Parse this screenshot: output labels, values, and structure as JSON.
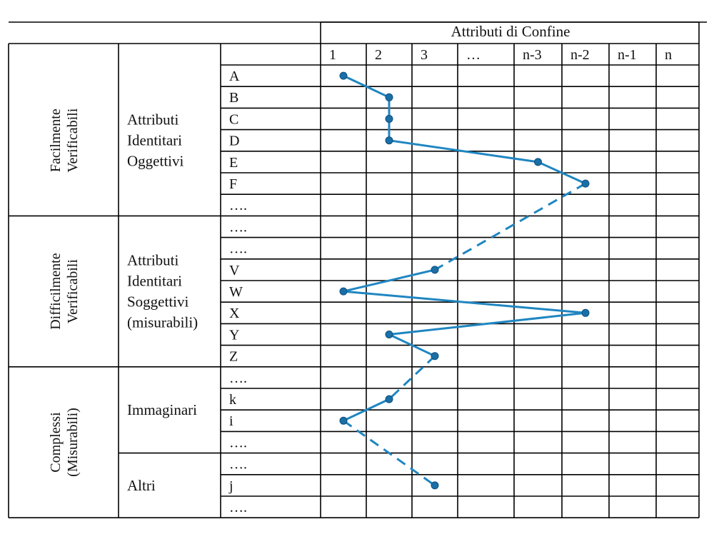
{
  "header": {
    "title": "Attributi di Confine"
  },
  "columns": [
    "1",
    "2",
    "3",
    "…",
    "n-3",
    "n-2",
    "n-1",
    "n"
  ],
  "groups": [
    {
      "label": "Facilmente Verificabili",
      "label_lines": [
        "Facilmente",
        "Verificabili"
      ]
    },
    {
      "label": "Difficilmente Verificabili",
      "label_lines": [
        "Difficilmente",
        "Verificabili"
      ]
    },
    {
      "label": "Complessi (Misurabili)",
      "label_lines": [
        "Complessi",
        "(Misurabili)"
      ]
    }
  ],
  "subgroups": [
    {
      "label_lines": [
        "Attributi",
        "Identitari",
        "Oggettivi"
      ]
    },
    {
      "label_lines": [
        "Attributi",
        "Identitari",
        "Soggettivi",
        "(misurabili)"
      ]
    },
    {
      "label_lines": [
        "Immaginari"
      ]
    },
    {
      "label_lines": [
        "Altri"
      ]
    }
  ],
  "rows": [
    "A",
    "B",
    "C",
    "D",
    "E",
    "F",
    "….",
    "….",
    "….",
    "V",
    "W",
    "X",
    "Y",
    "Z",
    "….",
    "k",
    "i",
    "….",
    "….",
    "j",
    "…."
  ],
  "profile": {
    "color": "#1f86c1",
    "points": [
      {
        "row": "A",
        "col": "1"
      },
      {
        "row": "B",
        "col": "2"
      },
      {
        "row": "C",
        "col": "2"
      },
      {
        "row": "D",
        "col": "2"
      },
      {
        "row": "E",
        "col": "n-3"
      },
      {
        "row": "F",
        "col": "n-2"
      },
      {
        "row": "V",
        "col": "3"
      },
      {
        "row": "W",
        "col": "1"
      },
      {
        "row": "X",
        "col": "n-2"
      },
      {
        "row": "Y",
        "col": "2"
      },
      {
        "row": "Z",
        "col": "3"
      },
      {
        "row": "k",
        "col": "2"
      },
      {
        "row": "i",
        "col": "1"
      },
      {
        "row": "j",
        "col": "3"
      }
    ],
    "segment_styles": [
      "solid",
      "solid",
      "solid",
      "solid",
      "solid",
      "dashed",
      "solid",
      "solid",
      "solid",
      "solid",
      "dashed",
      "solid",
      "dashed"
    ]
  }
}
